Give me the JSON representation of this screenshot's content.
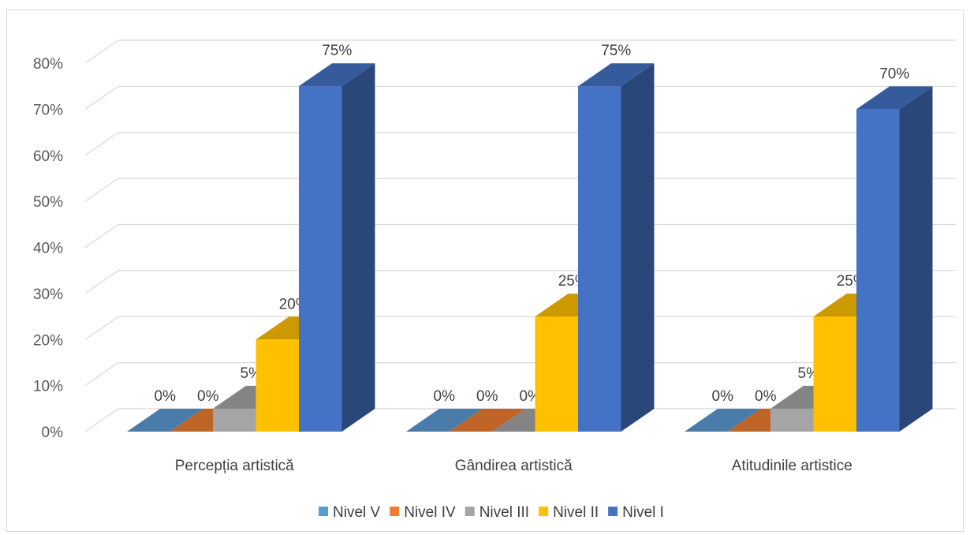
{
  "chart_data": {
    "type": "bar",
    "variant": "3d-clustered-column",
    "categories": [
      "Percepția artistică",
      "Gândirea artistică",
      "Atitudinile artistice"
    ],
    "series": [
      {
        "name": "Nivel V",
        "values": [
          0,
          0,
          0
        ],
        "color": "#5b9bd5"
      },
      {
        "name": "Nivel IV",
        "values": [
          0,
          0,
          0
        ],
        "color": "#ed7d31"
      },
      {
        "name": "Nivel III",
        "values": [
          5,
          0,
          5
        ],
        "color": "#a5a5a5"
      },
      {
        "name": "Nivel II",
        "values": [
          20,
          25,
          25
        ],
        "color": "#ffc000"
      },
      {
        "name": "Nivel I",
        "values": [
          75,
          75,
          70
        ],
        "color": "#4472c4"
      }
    ],
    "ylim": [
      0,
      80
    ],
    "yticks": [
      "0%",
      "10%",
      "20%",
      "30%",
      "40%",
      "50%",
      "60%",
      "70%",
      "80%"
    ],
    "value_suffix": "%",
    "grid": true,
    "legend_position": "bottom"
  }
}
